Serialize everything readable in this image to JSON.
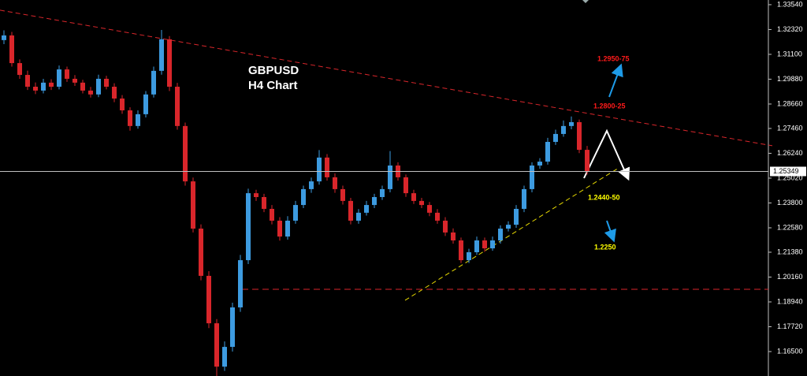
{
  "chart_data": {
    "type": "candlestick",
    "title": "GBPUSD",
    "subtitle": "H4 Chart",
    "up_color": "#3d9be0",
    "down_color": "#d9262b",
    "ylim": [
      1.153,
      1.3377
    ],
    "yticks": [
      {
        "value": 1.3354,
        "label": "1.33540"
      },
      {
        "value": 1.3232,
        "label": "1.32320"
      },
      {
        "value": 1.311,
        "label": "1.31100"
      },
      {
        "value": 1.2988,
        "label": "1.29880"
      },
      {
        "value": 1.2866,
        "label": "1.28660"
      },
      {
        "value": 1.2746,
        "label": "1.27460"
      },
      {
        "value": 1.2624,
        "label": "1.26240"
      },
      {
        "value": 1.2502,
        "label": "1.25020"
      },
      {
        "value": 1.238,
        "label": "1.23800"
      },
      {
        "value": 1.2258,
        "label": "1.22580"
      },
      {
        "value": 1.2138,
        "label": "1.21380"
      },
      {
        "value": 1.2016,
        "label": "1.20160"
      },
      {
        "value": 1.1894,
        "label": "1.18940"
      },
      {
        "value": 1.1772,
        "label": "1.17720"
      },
      {
        "value": 1.165,
        "label": "1.16500"
      }
    ],
    "current_price": {
      "value": 1.25349,
      "label": "1.25349",
      "color": "#c0c0c0"
    },
    "open": [
      1.318,
      1.3203,
      1.3067,
      1.3009,
      1.2951,
      1.2932,
      1.2971,
      1.2951,
      1.3036,
      1.299,
      1.2971,
      1.2932,
      1.2913,
      1.299,
      1.2951,
      1.2893,
      1.2835,
      1.2758,
      1.2816,
      1.2913,
      1.3029,
      1.3184,
      1.2951,
      1.2758,
      1.2486,
      1.2254,
      1.2022,
      1.1789,
      1.1576,
      1.1673,
      1.1867,
      1.2099,
      1.2428,
      1.2409,
      1.2351,
      1.2293,
      1.2215,
      1.2293,
      1.237,
      1.2448,
      1.2486,
      1.2603,
      1.2506,
      1.2448,
      1.239,
      1.2293,
      1.2332,
      1.237,
      1.2409,
      1.2448,
      1.2564,
      1.2506,
      1.2428,
      1.239,
      1.237,
      1.2332,
      1.2293,
      1.2235,
      1.2196,
      1.2099,
      1.2138,
      1.2196,
      1.2157,
      1.2196,
      1.2254,
      1.2273,
      1.2351,
      1.2448,
      1.2564,
      1.2583,
      1.268,
      1.2719,
      1.2758,
      1.2777,
      1.2641
    ],
    "high": [
      1.3228,
      1.322,
      1.3085,
      1.303,
      1.2972,
      1.299,
      1.2988,
      1.3055,
      1.305,
      1.3008,
      1.2985,
      1.295,
      1.301,
      1.3005,
      1.2968,
      1.291,
      1.285,
      1.2835,
      1.293,
      1.305,
      1.323,
      1.32,
      1.297,
      1.2775,
      1.2505,
      1.2275,
      1.2045,
      1.181,
      1.17,
      1.189,
      1.2125,
      1.245,
      1.2445,
      1.2425,
      1.237,
      1.231,
      1.2315,
      1.239,
      1.2465,
      1.2505,
      1.264,
      1.262,
      1.2525,
      1.2465,
      1.2405,
      1.235,
      1.239,
      1.2425,
      1.2465,
      1.2635,
      1.258,
      1.252,
      1.2445,
      1.2405,
      1.2385,
      1.235,
      1.231,
      1.2255,
      1.221,
      1.2155,
      1.2215,
      1.221,
      1.2215,
      1.227,
      1.229,
      1.237,
      1.2465,
      1.258,
      1.26,
      1.27,
      1.274,
      1.2785,
      1.2805,
      1.279,
      1.266
    ],
    "low": [
      1.316,
      1.305,
      1.299,
      1.2935,
      1.2915,
      1.2918,
      1.2935,
      1.2938,
      1.2975,
      1.2955,
      1.2918,
      1.2898,
      1.29,
      1.2938,
      1.2875,
      1.2818,
      1.2735,
      1.2745,
      1.28,
      1.2898,
      1.301,
      1.293,
      1.274,
      1.2465,
      1.2235,
      1.2,
      1.1765,
      1.153,
      1.1555,
      1.165,
      1.1845,
      1.208,
      1.239,
      1.2335,
      1.2275,
      1.2195,
      1.22,
      1.2278,
      1.2355,
      1.243,
      1.247,
      1.249,
      1.243,
      1.2372,
      1.2275,
      1.2278,
      1.2318,
      1.2355,
      1.2395,
      1.2432,
      1.249,
      1.241,
      1.2375,
      1.2355,
      1.2315,
      1.2278,
      1.2218,
      1.218,
      1.2085,
      1.2085,
      1.2125,
      1.214,
      1.2145,
      1.218,
      1.224,
      1.2258,
      1.2335,
      1.2432,
      1.2548,
      1.2568,
      1.2665,
      1.2705,
      1.2742,
      1.2625,
      1.252
    ],
    "close": [
      1.3203,
      1.3067,
      1.3009,
      1.2951,
      1.2932,
      1.2971,
      1.2951,
      1.3036,
      1.299,
      1.2971,
      1.2932,
      1.2913,
      1.299,
      1.2951,
      1.2893,
      1.2835,
      1.2758,
      1.2816,
      1.2913,
      1.3029,
      1.3184,
      1.2951,
      1.2758,
      1.2486,
      1.2254,
      1.2022,
      1.1789,
      1.1576,
      1.1673,
      1.1867,
      1.2099,
      1.2428,
      1.2409,
      1.2351,
      1.2293,
      1.2215,
      1.2293,
      1.237,
      1.2448,
      1.2486,
      1.2603,
      1.2506,
      1.2448,
      1.239,
      1.2293,
      1.2332,
      1.237,
      1.2409,
      1.2448,
      1.2564,
      1.2506,
      1.2428,
      1.239,
      1.237,
      1.2332,
      1.2293,
      1.2235,
      1.2196,
      1.2099,
      1.2138,
      1.2196,
      1.2157,
      1.2196,
      1.2254,
      1.2273,
      1.2351,
      1.2448,
      1.2564,
      1.2583,
      1.268,
      1.2719,
      1.2758,
      1.2777,
      1.2641,
      1.2535
    ],
    "trendlines": [
      {
        "color": "#d9262b",
        "values": [
          1.3327,
          1.2661
        ]
      },
      {
        "color": "#e6d800",
        "values": [
          1.1902,
          1.2552
        ]
      }
    ],
    "levels": [
      {
        "color": "#d9262b",
        "value": 1.1956
      }
    ],
    "annotations": [
      {
        "text": "1.2950-75",
        "color": "#ff1a1a"
      },
      {
        "text": "1.2800-25",
        "color": "#ff1a1a"
      },
      {
        "text": "1.2440-50",
        "color": "#ffff00"
      },
      {
        "text": "1.2250",
        "color": "#ffff00"
      }
    ]
  }
}
